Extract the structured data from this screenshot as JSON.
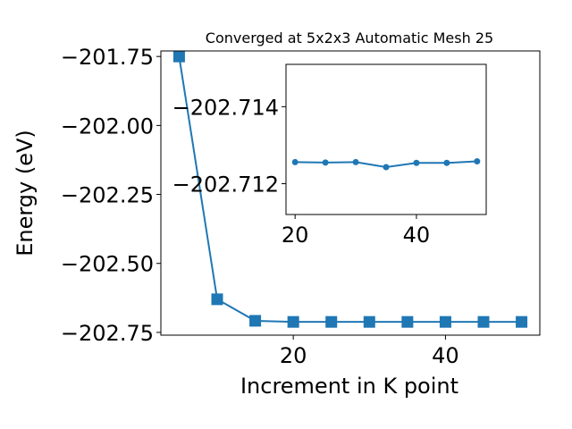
{
  "chart_data": [
    {
      "type": "line",
      "title": "Converged at 5x2x3 Automatic Mesh 25",
      "xlabel": "Increment in K point",
      "ylabel": "Energy (eV)",
      "x": [
        5,
        10,
        15,
        20,
        25,
        30,
        35,
        40,
        45,
        50
      ],
      "series": [
        {
          "values": [
            -201.75,
            -202.63,
            -202.708,
            -202.712,
            -202.712,
            -202.712,
            -202.712,
            -202.712,
            -202.712,
            -202.712
          ]
        }
      ],
      "xlim": [
        2.6,
        52.4
      ],
      "ylim": [
        -202.76,
        -201.73
      ],
      "xticks": [
        20,
        40
      ],
      "xtick_labels": [
        "20",
        "40"
      ],
      "yticks": [
        -201.75,
        -202.0,
        -202.25,
        -202.5,
        -202.75
      ],
      "ytick_labels": [
        "−201.75",
        "−202.00",
        "−202.25",
        "−202.50",
        "−202.75"
      ],
      "marker": "square",
      "color": "#1f77b4",
      "grid": false
    },
    {
      "type": "line",
      "title": "",
      "inset": true,
      "x": [
        20,
        25,
        30,
        35,
        40,
        45,
        50
      ],
      "series": [
        {
          "values": [
            -202.71256,
            -202.71255,
            -202.71256,
            -202.71243,
            -202.71254,
            -202.71254,
            -202.71258
          ]
        }
      ],
      "xlim": [
        18.5,
        51.5
      ],
      "ylim": [
        -202.7112,
        -202.7151
      ],
      "xticks": [
        20,
        40
      ],
      "xtick_labels": [
        "20",
        "40"
      ],
      "yticks": [
        -202.714,
        -202.712
      ],
      "ytick_labels": [
        "−202.714",
        "−202.712"
      ],
      "marker": "circle",
      "color": "#1f77b4",
      "grid": false
    }
  ]
}
